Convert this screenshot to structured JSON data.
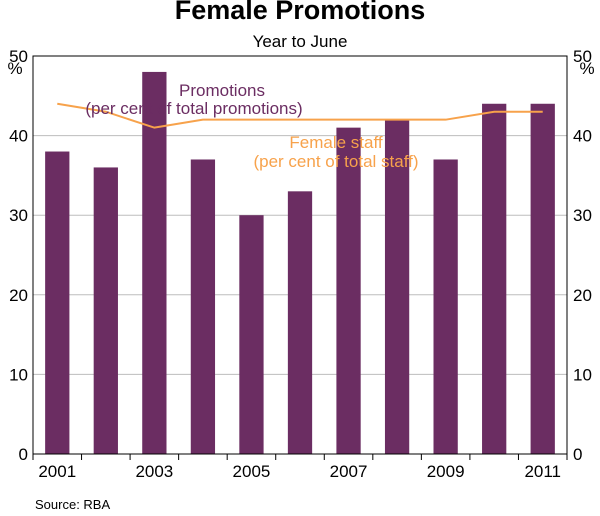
{
  "chart_data": {
    "type": "bar",
    "title": "Female Promotions",
    "subtitle": "Year to June",
    "y_unit_left": "%",
    "y_unit_right": "%",
    "ylim": [
      0,
      50
    ],
    "yticks": [
      0,
      10,
      20,
      30,
      40,
      50
    ],
    "x": [
      2001,
      2002,
      2003,
      2004,
      2005,
      2006,
      2007,
      2008,
      2009,
      2010,
      2011
    ],
    "xtick_labels": [
      "2001",
      "2003",
      "2005",
      "2007",
      "2009",
      "2011"
    ],
    "xtick_years": [
      2001,
      2003,
      2005,
      2007,
      2009,
      2011
    ],
    "series": [
      {
        "name": "Promotions",
        "name_sub": "(per cent of total promotions)",
        "kind": "bar",
        "color": "#6b2d62",
        "values": [
          38,
          36,
          48,
          37,
          30,
          33,
          41,
          42,
          37,
          44,
          44
        ]
      },
      {
        "name": "Female staff",
        "name_sub": "(per cent of total staff)",
        "kind": "line",
        "color": "#f7a24b",
        "values": [
          44,
          43,
          41,
          42,
          42,
          42,
          42,
          42,
          42,
          43,
          43
        ]
      }
    ],
    "grid": true,
    "source": "Source: RBA"
  }
}
